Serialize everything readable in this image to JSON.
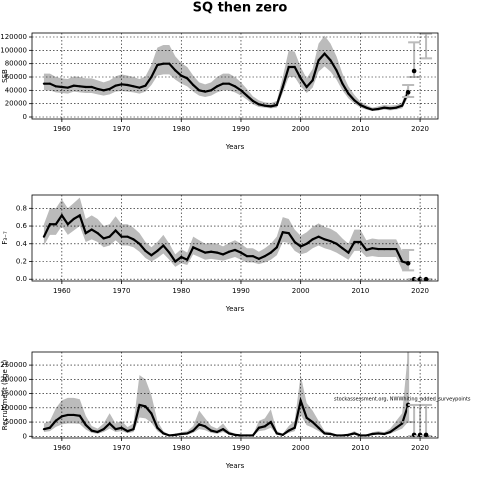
{
  "chart_data": [
    {
      "type": "line",
      "title": "SQ then zero",
      "xlabel": "Years",
      "ylabel": "SSB",
      "xlim": [
        1955,
        2023
      ],
      "xticks": [
        1960,
        1970,
        1980,
        1990,
        2000,
        2010,
        2020
      ],
      "ylim": [
        -3000,
        126000
      ],
      "yticks": [
        0,
        20000,
        40000,
        60000,
        80000,
        100000,
        120000
      ],
      "grid": true,
      "color": "#000000",
      "band_color": "#bbbbbb",
      "x": [
        1957,
        1958,
        1959,
        1960,
        1961,
        1962,
        1963,
        1964,
        1965,
        1966,
        1967,
        1968,
        1969,
        1970,
        1971,
        1972,
        1973,
        1974,
        1975,
        1976,
        1977,
        1978,
        1979,
        1980,
        1981,
        1982,
        1983,
        1984,
        1985,
        1986,
        1987,
        1988,
        1989,
        1990,
        1991,
        1992,
        1993,
        1994,
        1995,
        1996,
        1997,
        1998,
        1999,
        2000,
        2001,
        2002,
        2003,
        2004,
        2005,
        2006,
        2007,
        2008,
        2009,
        2010,
        2011,
        2012,
        2013,
        2014,
        2015,
        2016,
        2017,
        2018
      ],
      "values": [
        50000,
        50000,
        46000,
        45000,
        44000,
        47000,
        46000,
        45000,
        45000,
        42000,
        40000,
        42000,
        47000,
        49000,
        48000,
        46000,
        44000,
        47000,
        60000,
        78000,
        80000,
        80000,
        70000,
        62000,
        58000,
        48000,
        40000,
        38000,
        40000,
        46000,
        50000,
        50000,
        46000,
        40000,
        32000,
        24000,
        19000,
        17000,
        16000,
        18000,
        45000,
        75000,
        75000,
        58000,
        45000,
        55000,
        85000,
        95000,
        85000,
        70000,
        50000,
        35000,
        25000,
        18000,
        14000,
        11000,
        12000,
        14000,
        13000,
        14000,
        17000,
        37000
      ],
      "lower": [
        40000,
        40000,
        37000,
        36000,
        35000,
        38000,
        37000,
        36000,
        36000,
        34000,
        32000,
        34000,
        38000,
        39000,
        38000,
        37000,
        35000,
        38000,
        48000,
        62000,
        64000,
        64000,
        56000,
        50000,
        46000,
        38000,
        32000,
        30000,
        32000,
        37000,
        40000,
        40000,
        37000,
        32000,
        26000,
        19000,
        15000,
        14000,
        13000,
        14000,
        36000,
        60000,
        60000,
        46000,
        36000,
        44000,
        68000,
        76000,
        68000,
        56000,
        40000,
        28000,
        20000,
        14000,
        11000,
        9000,
        10000,
        11000,
        10000,
        11000,
        13000,
        30000
      ],
      "upper": [
        65000,
        65000,
        60000,
        58000,
        57000,
        61000,
        60000,
        58000,
        58000,
        55000,
        52000,
        55000,
        61000,
        64000,
        62000,
        60000,
        57000,
        61000,
        78000,
        104000,
        108000,
        108000,
        91000,
        81000,
        75000,
        62000,
        52000,
        49000,
        52000,
        60000,
        65000,
        65000,
        60000,
        52000,
        42000,
        31000,
        25000,
        22000,
        21000,
        24000,
        60000,
        100000,
        98000,
        75000,
        58000,
        72000,
        110000,
        122000,
        110000,
        91000,
        65000,
        46000,
        33000,
        23000,
        18000,
        14000,
        16000,
        18000,
        17000,
        18000,
        22000,
        48000
      ],
      "projection": {
        "x": [
          2018,
          2019,
          2020,
          2021
        ],
        "values": [
          37000,
          69000,
          null,
          null
        ],
        "lower": [
          30000,
          60000,
          null,
          88000
        ],
        "upper": [
          48000,
          112000,
          null,
          125000
        ]
      }
    },
    {
      "type": "line",
      "xlabel": "Years",
      "ylabel": "F₃₋₇",
      "xlim": [
        1955,
        2023
      ],
      "xticks": [
        1960,
        1970,
        1980,
        1990,
        2000,
        2010,
        2020
      ],
      "ylim": [
        -0.02,
        0.95
      ],
      "yticks": [
        {
          "value": 0,
          "label": "0.0"
        },
        0.2,
        0.4,
        0.6,
        0.8
      ],
      "grid": true,
      "color": "#000000",
      "band_color": "#bbbbbb",
      "x": [
        1957,
        1958,
        1959,
        1960,
        1961,
        1962,
        1963,
        1964,
        1965,
        1966,
        1967,
        1968,
        1969,
        1970,
        1971,
        1972,
        1973,
        1974,
        1975,
        1976,
        1977,
        1978,
        1979,
        1980,
        1981,
        1982,
        1983,
        1984,
        1985,
        1986,
        1987,
        1988,
        1989,
        1990,
        1991,
        1992,
        1993,
        1994,
        1995,
        1996,
        1997,
        1998,
        1999,
        2000,
        2001,
        2002,
        2003,
        2004,
        2005,
        2006,
        2007,
        2008,
        2009,
        2010,
        2011,
        2012,
        2013,
        2014,
        2015,
        2016,
        2017,
        2018
      ],
      "values": [
        0.48,
        0.62,
        0.62,
        0.72,
        0.62,
        0.68,
        0.72,
        0.52,
        0.56,
        0.52,
        0.46,
        0.48,
        0.55,
        0.48,
        0.48,
        0.45,
        0.4,
        0.32,
        0.27,
        0.32,
        0.38,
        0.3,
        0.2,
        0.25,
        0.22,
        0.36,
        0.33,
        0.3,
        0.31,
        0.3,
        0.28,
        0.31,
        0.33,
        0.3,
        0.26,
        0.26,
        0.23,
        0.26,
        0.3,
        0.36,
        0.53,
        0.52,
        0.42,
        0.37,
        0.4,
        0.45,
        0.48,
        0.45,
        0.43,
        0.4,
        0.35,
        0.3,
        0.42,
        0.42,
        0.33,
        0.35,
        0.34,
        0.34,
        0.34,
        0.34,
        0.2,
        0.18
      ],
      "lower": [
        0.38,
        0.5,
        0.5,
        0.6,
        0.5,
        0.55,
        0.6,
        0.42,
        0.45,
        0.42,
        0.36,
        0.38,
        0.44,
        0.38,
        0.38,
        0.36,
        0.31,
        0.24,
        0.2,
        0.24,
        0.29,
        0.22,
        0.14,
        0.18,
        0.16,
        0.28,
        0.25,
        0.22,
        0.23,
        0.22,
        0.21,
        0.23,
        0.25,
        0.22,
        0.19,
        0.19,
        0.17,
        0.19,
        0.22,
        0.27,
        0.42,
        0.41,
        0.32,
        0.28,
        0.3,
        0.35,
        0.38,
        0.35,
        0.33,
        0.3,
        0.26,
        0.22,
        0.32,
        0.32,
        0.25,
        0.26,
        0.25,
        0.25,
        0.25,
        0.25,
        0.1,
        0.1
      ],
      "upper": [
        0.62,
        0.8,
        0.8,
        0.9,
        0.8,
        0.86,
        0.92,
        0.68,
        0.72,
        0.68,
        0.6,
        0.62,
        0.71,
        0.62,
        0.62,
        0.58,
        0.52,
        0.42,
        0.36,
        0.42,
        0.5,
        0.4,
        0.28,
        0.34,
        0.3,
        0.48,
        0.44,
        0.4,
        0.41,
        0.4,
        0.37,
        0.41,
        0.44,
        0.4,
        0.35,
        0.35,
        0.31,
        0.35,
        0.4,
        0.48,
        0.7,
        0.68,
        0.56,
        0.49,
        0.53,
        0.59,
        0.63,
        0.59,
        0.57,
        0.53,
        0.46,
        0.4,
        0.56,
        0.56,
        0.44,
        0.46,
        0.45,
        0.45,
        0.45,
        0.45,
        0.32,
        0.32
      ],
      "projection": {
        "x": [
          2018,
          2019,
          2020,
          2021
        ],
        "values": [
          0.18,
          0,
          0,
          0
        ],
        "lower": [
          0.1,
          0,
          0,
          0
        ],
        "upper": [
          0.33,
          0,
          0,
          0
        ]
      }
    },
    {
      "type": "line",
      "xlabel": "Years",
      "ylabel": "Recruitment (age 1)",
      "annotation": "stockassessment.org, NWWhiting_added_surveypoints",
      "xlim": [
        1955,
        2023
      ],
      "xticks": [
        1960,
        1970,
        1980,
        1990,
        2000,
        2010,
        2020
      ],
      "ylim": [
        -6000,
        296000
      ],
      "yticks": [
        0,
        50000,
        100000,
        150000,
        200000,
        250000
      ],
      "grid": true,
      "color": "#000000",
      "band_color": "#bbbbbb",
      "x": [
        1957,
        1958,
        1959,
        1960,
        1961,
        1962,
        1963,
        1964,
        1965,
        1966,
        1967,
        1968,
        1969,
        1970,
        1971,
        1972,
        1973,
        1974,
        1975,
        1976,
        1977,
        1978,
        1979,
        1980,
        1981,
        1982,
        1983,
        1984,
        1985,
        1986,
        1987,
        1988,
        1989,
        1990,
        1991,
        1992,
        1993,
        1994,
        1995,
        1996,
        1997,
        1998,
        1999,
        2000,
        2001,
        2002,
        2003,
        2004,
        2005,
        2006,
        2007,
        2008,
        2009,
        2010,
        2011,
        2012,
        2013,
        2014,
        2015,
        2016,
        2017,
        2018
      ],
      "values": [
        25000,
        30000,
        55000,
        70000,
        75000,
        75000,
        72000,
        40000,
        20000,
        15000,
        25000,
        45000,
        25000,
        30000,
        18000,
        25000,
        110000,
        105000,
        80000,
        30000,
        10000,
        3000,
        5000,
        8000,
        10000,
        20000,
        42000,
        35000,
        20000,
        15000,
        25000,
        10000,
        5000,
        3000,
        3000,
        3000,
        30000,
        35000,
        50000,
        10000,
        5000,
        20000,
        30000,
        125000,
        65000,
        50000,
        30000,
        10000,
        8000,
        3000,
        3000,
        5000,
        10000,
        3000,
        3000,
        8000,
        10000,
        8000,
        15000,
        30000,
        45000,
        110000
      ],
      "lower": [
        15000,
        18000,
        33000,
        42000,
        45000,
        45000,
        43000,
        24000,
        12000,
        9000,
        15000,
        27000,
        15000,
        18000,
        11000,
        15000,
        66000,
        63000,
        48000,
        18000,
        6000,
        1800,
        3000,
        4800,
        6000,
        12000,
        25000,
        21000,
        12000,
        9000,
        15000,
        6000,
        3000,
        1800,
        1800,
        1800,
        18000,
        21000,
        30000,
        6000,
        3000,
        12000,
        18000,
        75000,
        39000,
        30000,
        18000,
        6000,
        4800,
        1800,
        1800,
        3000,
        6000,
        1800,
        1800,
        4800,
        6000,
        4800,
        9000,
        18000,
        27000,
        50000
      ],
      "upper": [
        45000,
        54000,
        99000,
        126000,
        135000,
        135000,
        130000,
        72000,
        36000,
        27000,
        45000,
        81000,
        45000,
        54000,
        32000,
        45000,
        215000,
        200000,
        144000,
        54000,
        18000,
        5400,
        9000,
        14000,
        18000,
        36000,
        90000,
        63000,
        36000,
        27000,
        45000,
        18000,
        9000,
        5400,
        5400,
        5400,
        54000,
        63000,
        95000,
        18000,
        9000,
        36000,
        54000,
        215000,
        117000,
        90000,
        54000,
        18000,
        14000,
        5400,
        5400,
        9000,
        18000,
        5400,
        5400,
        14000,
        18000,
        14000,
        27000,
        54000,
        81000,
        300000
      ],
      "projection": {
        "x": [
          2018,
          2019,
          2020,
          2021
        ],
        "values": [
          110000,
          5000,
          5000,
          5000
        ],
        "lower": [
          50000,
          1000,
          1000,
          1000
        ],
        "upper": [
          300000,
          110000,
          110000,
          110000
        ]
      }
    }
  ]
}
